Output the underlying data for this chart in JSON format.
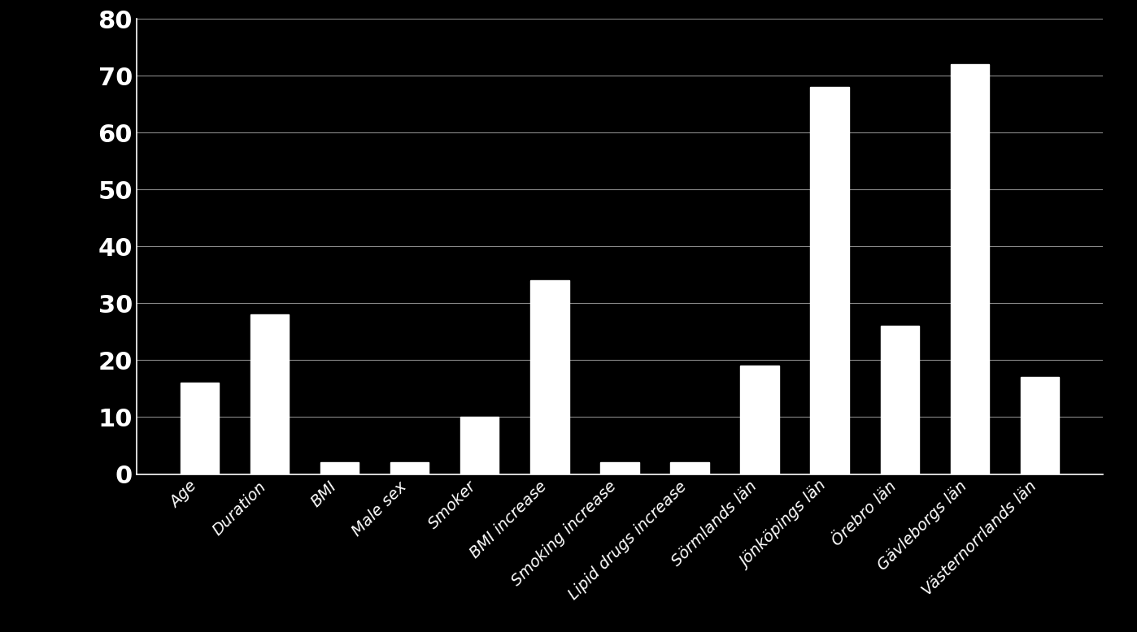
{
  "categories": [
    "Age",
    "Duration",
    "BMI",
    "Male sex",
    "Smoker",
    "BMI increase",
    "Smoking increase",
    "Lipid drugs increase",
    "Sörmlands län",
    "Jönköpings län",
    "Örebro län",
    "Gävleborgs län",
    "Västernorrlands län"
  ],
  "values": [
    16,
    28,
    2,
    2,
    10,
    34,
    2,
    2,
    19,
    68,
    26,
    72,
    17
  ],
  "bar_color": "#ffffff",
  "background_color": "#000000",
  "text_color": "#ffffff",
  "grid_color": "#888888",
  "ylim": [
    0,
    80
  ],
  "yticks": [
    0,
    10,
    20,
    30,
    40,
    50,
    60,
    70,
    80
  ],
  "ytick_fontsize": 22,
  "xtick_fontsize": 14,
  "bar_width": 0.55
}
